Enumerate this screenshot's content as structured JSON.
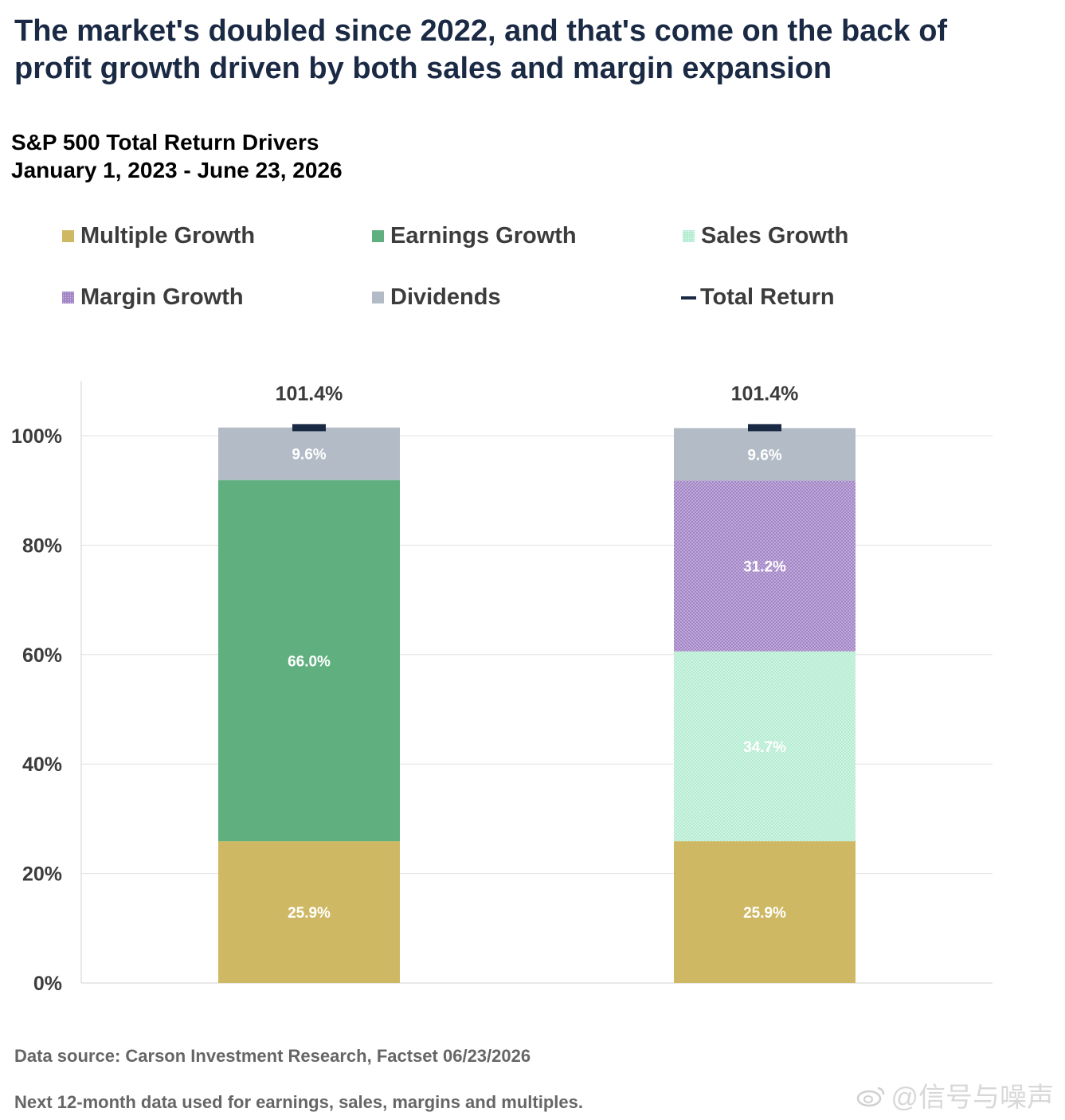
{
  "headline": {
    "line1": "The market's doubled since 2022, and that's come on the back of",
    "line2": "profit growth driven by both sales and margin expansion"
  },
  "subtitle": {
    "line1": "S&P 500 Total Return Drivers",
    "line2": "January 1, 2023 - June 23, 2026"
  },
  "legend": [
    {
      "label": "Multiple Growth",
      "color": "#cfb863",
      "kind": "swatch"
    },
    {
      "label": "Earnings Growth",
      "color": "#5fb07e",
      "kind": "swatch"
    },
    {
      "label": "Sales Growth",
      "color": "#b3ecd1",
      "kind": "swatch-dotted"
    },
    {
      "label": "Margin Growth",
      "color": "#a184c4",
      "kind": "swatch-dotted"
    },
    {
      "label": "Dividends",
      "color": "#b3bcc6",
      "kind": "swatch"
    },
    {
      "label": "Total Return",
      "color": "#1b2a44",
      "kind": "dash"
    }
  ],
  "chart_data": {
    "type": "bar",
    "stacked": true,
    "ylim": [
      0,
      110
    ],
    "yticks": [
      0,
      20,
      40,
      60,
      80,
      100
    ],
    "ytick_labels": [
      "0%",
      "20%",
      "40%",
      "60%",
      "80%",
      "100%"
    ],
    "grid": true,
    "bars": [
      {
        "segments": [
          {
            "name": "Multiple Growth",
            "value": 25.9,
            "label": "25.9%",
            "color": "#cfb863"
          },
          {
            "name": "Earnings Growth",
            "value": 66.0,
            "label": "66.0%",
            "color": "#5fb07e"
          },
          {
            "name": "Dividends",
            "value": 9.6,
            "label": "9.6%",
            "color": "#b3bcc6"
          }
        ],
        "total": 101.4,
        "total_label": "101.4%"
      },
      {
        "segments": [
          {
            "name": "Multiple Growth",
            "value": 25.9,
            "label": "25.9%",
            "color": "#cfb863"
          },
          {
            "name": "Sales Growth",
            "value": 34.7,
            "label": "34.7%",
            "color": "#b3ecd1",
            "pattern": "dots-light"
          },
          {
            "name": "Margin Growth",
            "value": 31.2,
            "label": "31.2%",
            "color": "#a184c4",
            "pattern": "dots-dark"
          },
          {
            "name": "Dividends",
            "value": 9.6,
            "label": "9.6%",
            "color": "#b3bcc6"
          }
        ],
        "total": 101.4,
        "total_label": "101.4%"
      }
    ]
  },
  "footer": {
    "source": "Data source: Carson Investment Research, Factset   06/23/2026",
    "note": "Next 12-month data used for earnings, sales, margins and multiples."
  },
  "watermark": "@信号与噪声"
}
